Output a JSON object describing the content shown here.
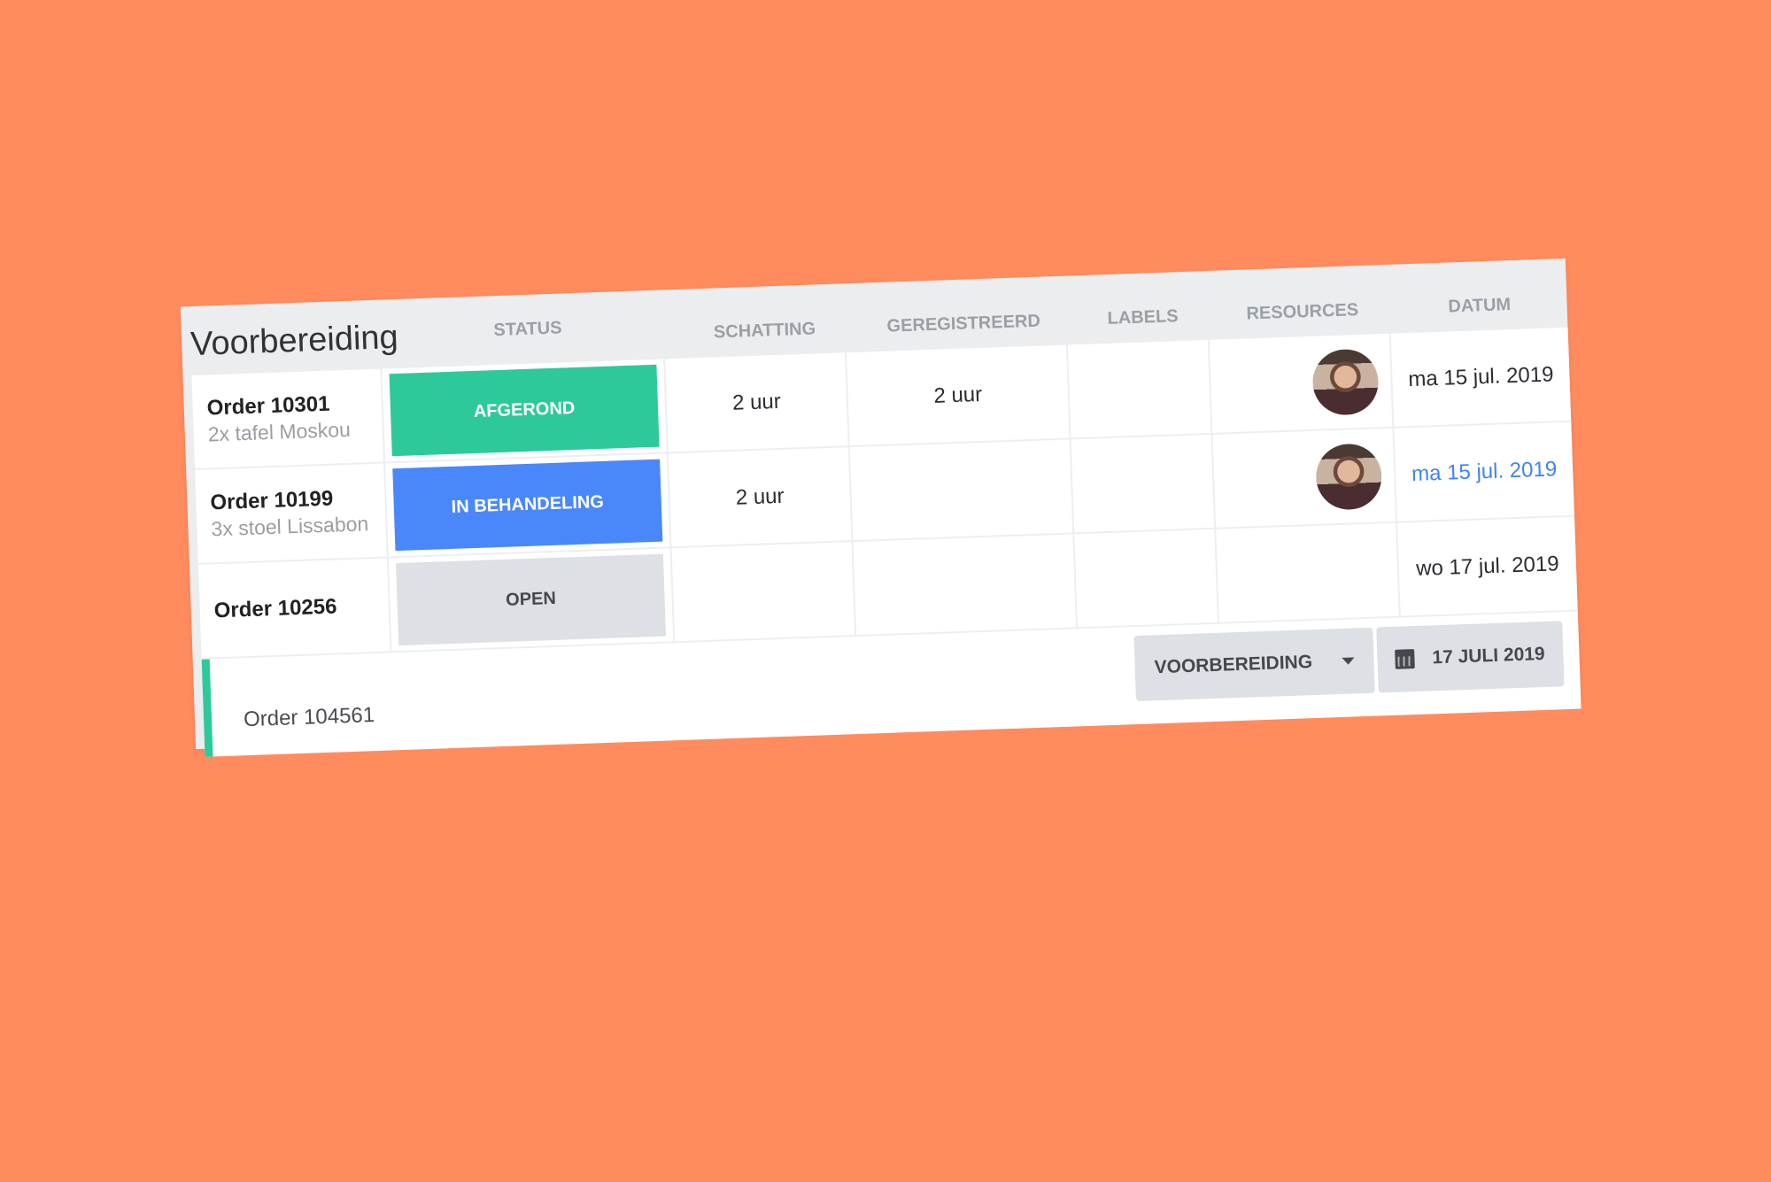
{
  "colors": {
    "background": "#ff8b5e",
    "done": "#2ec99a",
    "in_progress": "#4a87fb",
    "open": "#dde0e4",
    "date_highlight": "#3f84f5"
  },
  "header": {
    "title": "Voorbereiding",
    "columns": [
      "STATUS",
      "SCHATTING",
      "GEREGISTREERD",
      "LABELS",
      "RESOURCES",
      "DATUM"
    ]
  },
  "rows": [
    {
      "order": "Order 10301",
      "desc": "2x tafel Moskou",
      "status": "AFGEROND",
      "estimate": "2 uur",
      "registered": "2 uur",
      "labels": "",
      "resource": "avatar",
      "date": "ma 15 jul. 2019"
    },
    {
      "order": "Order 10199",
      "desc": "3x stoel Lissabon",
      "status": "IN BEHANDELING",
      "estimate": "2 uur",
      "registered": "",
      "labels": "",
      "resource": "avatar",
      "date": "ma 15 jul. 2019"
    },
    {
      "order": "Order 10256",
      "desc": "",
      "status": "OPEN",
      "estimate": "",
      "registered": "",
      "labels": "",
      "resource": "",
      "date": "wo 17 jul. 2019"
    }
  ],
  "footer": {
    "order": "Order 104561",
    "phase_select": "VOORBEREIDING",
    "date_button": "17 JULI 2019",
    "icons": [
      "chevron-down-icon",
      "calendar-icon"
    ]
  }
}
